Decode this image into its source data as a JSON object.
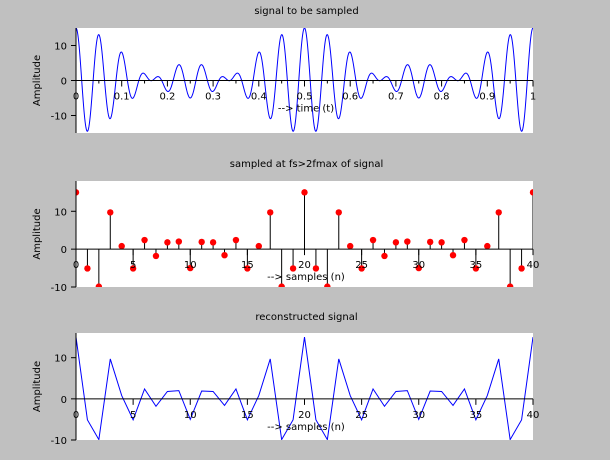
{
  "colors": {
    "figure_background": "#c0c0c0",
    "plot_background": "#ffffff",
    "signal": "#0000ff",
    "stem": "#000000",
    "marker": "#ff0000",
    "text": "#000000"
  },
  "chart_data": [
    {
      "type": "line",
      "title": "signal to be sampled",
      "xlabel": "--> time (t)",
      "ylabel": "Amplitude",
      "xlim": [
        0,
        1
      ],
      "ylim": [
        -15,
        15
      ],
      "xticks": [
        0,
        0.1,
        0.2,
        0.3,
        0.4,
        0.5,
        0.6,
        0.7,
        0.8,
        0.9,
        1
      ],
      "xtick_labels": [
        "0",
        "0.1",
        "0.2",
        "0.3",
        "0.4",
        "0.5",
        "0.6",
        "0.7",
        "0.8",
        "0.9",
        "1"
      ],
      "yticks": [
        -10,
        0,
        10
      ],
      "ytick_labels": [
        "-10",
        "0",
        "10"
      ],
      "grid": false,
      "series": [
        {
          "components": [
            {
              "amplitude": 5,
              "frequency_hz": 20
            },
            {
              "amplitude": 5,
              "frequency_hz": 18
            },
            {
              "amplitude": 5,
              "frequency_hz": 22
            }
          ],
          "t_range": [
            0,
            1
          ]
        }
      ]
    },
    {
      "type": "stem",
      "title": "sampled at fs>2fmax of signal",
      "xlabel": "--> samples (n)",
      "ylabel": "Amplitude",
      "xlim": [
        0,
        40
      ],
      "ylim": [
        -10,
        18
      ],
      "xticks": [
        0,
        5,
        10,
        15,
        20,
        25,
        30,
        35,
        40
      ],
      "xtick_labels": [
        "0",
        "5",
        "10",
        "15",
        "20",
        "25",
        "30",
        "35",
        "40"
      ],
      "yticks": [
        -10,
        0,
        10
      ],
      "ytick_labels": [
        "-10",
        "0",
        "10"
      ],
      "grid": false,
      "x": [
        0,
        1,
        2,
        3,
        4,
        5,
        6,
        7,
        8,
        9,
        10,
        11,
        12,
        13,
        14,
        15,
        16,
        17,
        18,
        19,
        20,
        21,
        22,
        23,
        24,
        25,
        26,
        27,
        28,
        29,
        30,
        31,
        32,
        33,
        34,
        35,
        36,
        37,
        38,
        39,
        40
      ],
      "values": [
        15,
        -5.1,
        -9.9,
        9.7,
        0.8,
        -5.1,
        2.4,
        -1.8,
        1.8,
        2,
        -5,
        1.9,
        1.8,
        -1.6,
        2.4,
        -5.1,
        0.8,
        9.7,
        -9.9,
        -5.1,
        15,
        -5.1,
        -9.9,
        9.7,
        0.8,
        -5.1,
        2.4,
        -1.8,
        1.8,
        2,
        -5,
        1.9,
        1.8,
        -1.6,
        2.4,
        -5.1,
        0.8,
        9.7,
        -9.9,
        -5.1,
        15
      ]
    },
    {
      "type": "line",
      "title": "reconstructed signal",
      "xlabel": "--> samples (n)",
      "ylabel": "Amplitude",
      "xlim": [
        0,
        40
      ],
      "ylim": [
        -10,
        16
      ],
      "xticks": [
        0,
        5,
        10,
        15,
        20,
        25,
        30,
        35,
        40
      ],
      "xtick_labels": [
        "0",
        "5",
        "10",
        "15",
        "20",
        "25",
        "30",
        "35",
        "40"
      ],
      "yticks": [
        -10,
        0,
        10
      ],
      "ytick_labels": [
        "-10",
        "0",
        "10"
      ],
      "grid": false,
      "x": [
        0,
        1,
        2,
        3,
        4,
        5,
        6,
        7,
        8,
        9,
        10,
        11,
        12,
        13,
        14,
        15,
        16,
        17,
        18,
        19,
        20,
        21,
        22,
        23,
        24,
        25,
        26,
        27,
        28,
        29,
        30,
        31,
        32,
        33,
        34,
        35,
        36,
        37,
        38,
        39,
        40
      ],
      "values": [
        15,
        -5.1,
        -9.9,
        9.7,
        0.8,
        -5.1,
        2.4,
        -1.8,
        1.8,
        2,
        -5,
        1.9,
        1.8,
        -1.6,
        2.4,
        -5.1,
        0.8,
        9.7,
        -9.9,
        -5.1,
        15,
        -5.1,
        -9.9,
        9.7,
        0.8,
        -5.1,
        2.4,
        -1.8,
        1.8,
        2,
        -5,
        1.9,
        1.8,
        -1.6,
        2.4,
        -5.1,
        0.8,
        9.7,
        -9.9,
        -5.1,
        15
      ]
    }
  ]
}
